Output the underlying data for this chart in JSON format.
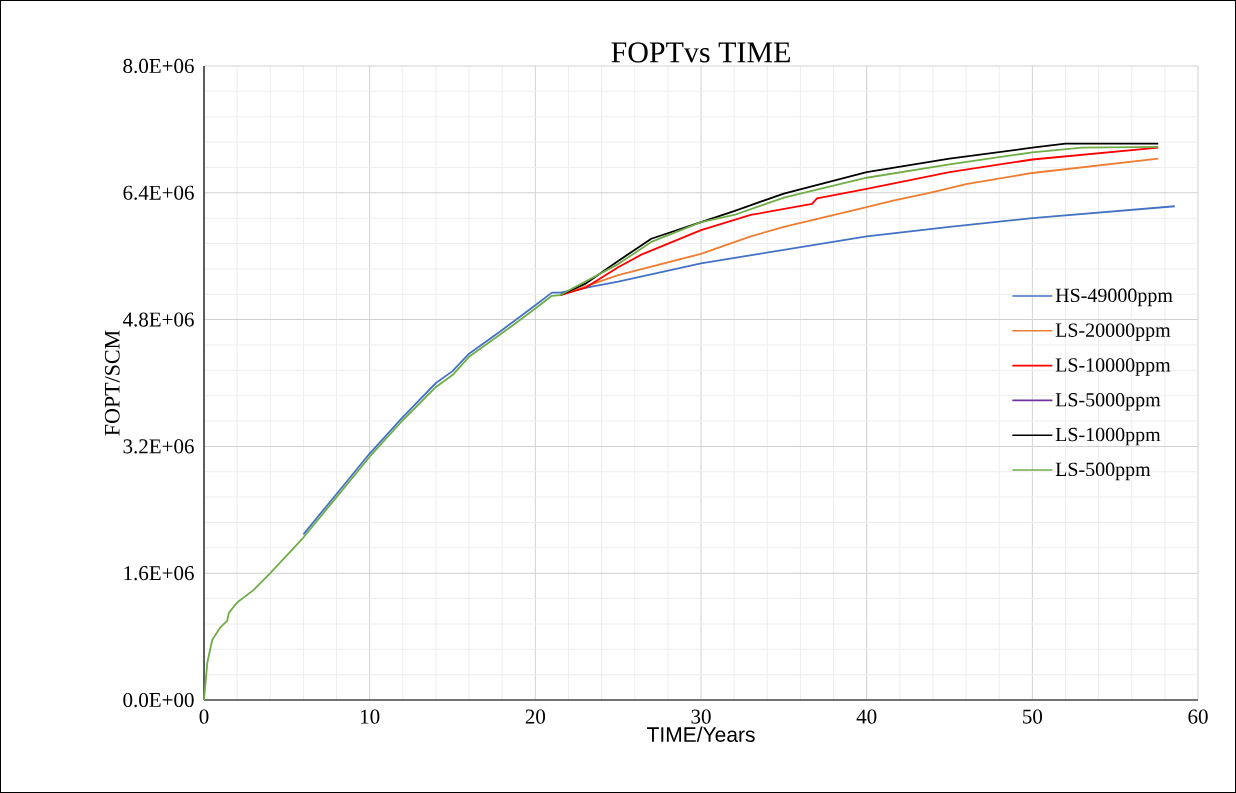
{
  "chart_data": {
    "type": "line",
    "title": "FOPTvs TIME",
    "xlabel": "TIME/Years",
    "ylabel": "FOPT/SCM",
    "xlim": [
      0,
      60
    ],
    "xticks": [
      0,
      10,
      20,
      30,
      40,
      50,
      60
    ],
    "ylim": [
      0,
      8000000
    ],
    "yticks": [
      {
        "value": 0,
        "label": "0.0E+00"
      },
      {
        "value": 1600000,
        "label": "1.6E+06"
      },
      {
        "value": 3200000,
        "label": "3.2E+06"
      },
      {
        "value": 4800000,
        "label": "4.8E+06"
      },
      {
        "value": 6400000,
        "label": "6.4E+06"
      },
      {
        "value": 8000000,
        "label": "8.0E+06"
      }
    ],
    "grid": true,
    "legend": "right",
    "marker": "none",
    "line_style": "solid",
    "series": [
      {
        "name": "HS-49000ppm",
        "color": "#4472c4",
        "x": [
          6,
          8,
          10,
          12,
          14,
          15,
          16,
          18,
          20,
          21,
          21.5,
          25,
          30,
          35,
          40,
          45,
          50,
          58.6
        ],
        "values": [
          2090000,
          2600000,
          3110000,
          3570000,
          4000000,
          4150000,
          4370000,
          4670000,
          4980000,
          5140000,
          5140000,
          5280000,
          5510000,
          5680000,
          5850000,
          5970000,
          6080000,
          6230000
        ]
      },
      {
        "name": "LS-20000ppm",
        "color": "#ed7d31",
        "x": [
          21.5,
          25,
          30,
          33,
          35,
          40,
          41.6,
          44,
          46,
          50,
          57.6
        ],
        "values": [
          5110000,
          5360000,
          5630000,
          5850000,
          5970000,
          6220000,
          6300000,
          6410000,
          6510000,
          6650000,
          6830000
        ]
      },
      {
        "name": "LS-10000ppm",
        "color": "#ff0000",
        "x": [
          21.5,
          23,
          25,
          26.4,
          30,
          33,
          36.7,
          37,
          40,
          45,
          50,
          57.6
        ],
        "values": [
          5110000,
          5200000,
          5460000,
          5620000,
          5930000,
          6120000,
          6260000,
          6330000,
          6450000,
          6660000,
          6820000,
          6970000
        ]
      },
      {
        "name": "LS-5000ppm",
        "color": "#7030a0",
        "values": [
          null
        ]
      },
      {
        "name": "LS-1000ppm",
        "color": "#000000",
        "x": [
          21.5,
          23,
          25,
          27,
          30,
          32,
          35,
          40,
          45,
          50,
          52,
          57.6
        ],
        "values": [
          5110000,
          5250000,
          5540000,
          5820000,
          6030000,
          6170000,
          6390000,
          6660000,
          6830000,
          6970000,
          7020000,
          7020000
        ]
      },
      {
        "name": "LS-500ppm",
        "color": "#70ad47",
        "x": [
          0,
          0.2,
          0.5,
          1,
          1.3,
          1.4,
          1.5,
          2,
          3,
          4,
          6,
          8,
          10,
          12,
          14,
          15,
          16,
          18,
          20,
          21,
          21.5,
          25,
          27,
          30,
          32,
          35,
          40,
          45,
          50,
          53,
          57.6
        ],
        "values": [
          0,
          470000,
          760000,
          920000,
          980000,
          1000000,
          1100000,
          1230000,
          1390000,
          1600000,
          2050000,
          2560000,
          3070000,
          3530000,
          3950000,
          4100000,
          4330000,
          4630000,
          4940000,
          5100000,
          5110000,
          5500000,
          5780000,
          6030000,
          6120000,
          6340000,
          6590000,
          6760000,
          6910000,
          6970000,
          6980000
        ]
      }
    ]
  }
}
